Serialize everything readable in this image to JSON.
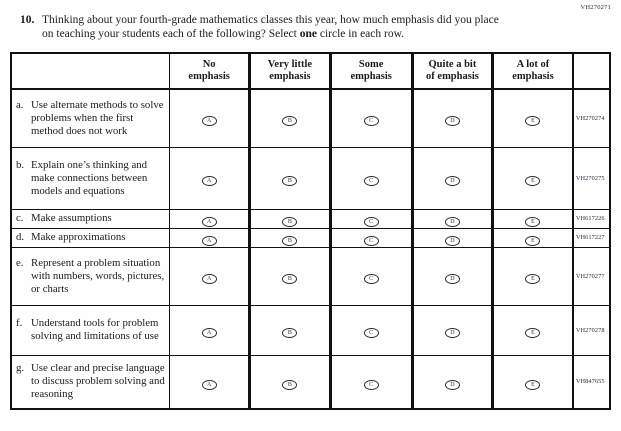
{
  "page": {
    "top_code": "VH270271",
    "background_color": "#fefefe",
    "ink_color": "#1c1c1c"
  },
  "question": {
    "number": "10.",
    "text1": "Thinking about your fourth-grade mathematics classes this year, how much emphasis did you place on teaching your students each of the following? Select ",
    "bold": "one",
    "text2": " circle in each row."
  },
  "table": {
    "option_letters": [
      "A",
      "B",
      "C",
      "D",
      "E"
    ],
    "headers": [
      {
        "line1": "No",
        "line2": "emphasis"
      },
      {
        "line1": "Very little",
        "line2": "emphasis"
      },
      {
        "line1": "Some",
        "line2": "emphasis"
      },
      {
        "line1": "Quite a bit",
        "line2": "of emphasis"
      },
      {
        "line1": "A lot of",
        "line2": "emphasis"
      }
    ],
    "rows": [
      {
        "letter": "a.",
        "text": "Use alternate methods to solve problems when the first method does not work",
        "code": "VH270274"
      },
      {
        "letter": "b.",
        "text": "Explain one’s thinking and make connections between models and equations",
        "code": "VH270275"
      },
      {
        "letter": "c.",
        "text": "Make assumptions",
        "code": "VH617226"
      },
      {
        "letter": "d.",
        "text": "Make approximations",
        "code": "VH617227"
      },
      {
        "letter": "e.",
        "text": "Represent a problem situation with numbers, words, pictures, or charts",
        "code": "VH270277"
      },
      {
        "letter": "f.",
        "text": "Understand tools for problem solving and limitations of use",
        "code": "VH270278"
      },
      {
        "letter": "g.",
        "text": "Use clear and precise language to discuss problem solving and reasoning",
        "code": "VH847655"
      }
    ]
  }
}
